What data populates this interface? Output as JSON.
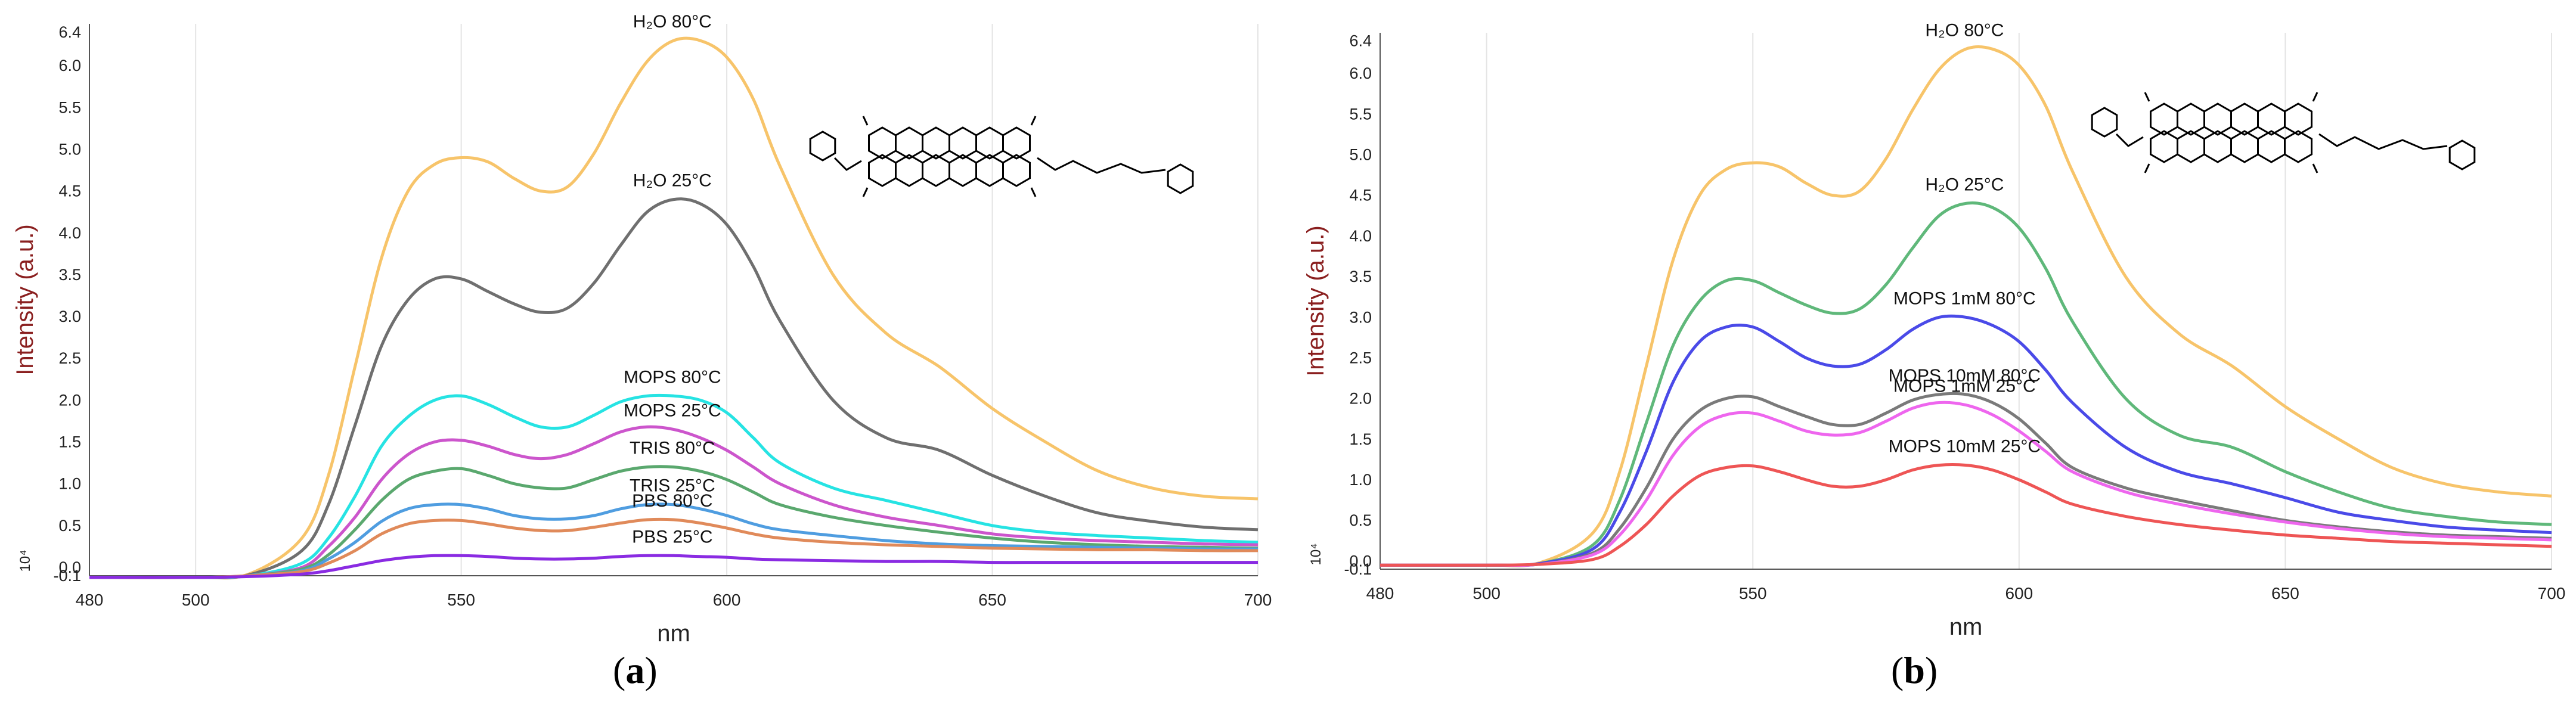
{
  "panels": [
    {
      "caption_open": "(",
      "caption_letter": "a",
      "caption_close": ")",
      "chart_data": {
        "type": "line",
        "xlabel": "nm",
        "ylabel": "Intensity (a.u.)",
        "y_multiplier": "10⁴",
        "xlim": [
          480,
          700
        ],
        "ylim": [
          -0.1,
          6.5
        ],
        "x_ticks": [
          "480",
          "500",
          "550",
          "600",
          "650",
          "700"
        ],
        "y_ticks": [
          "-0.1",
          "0.0",
          "0.5",
          "1.0",
          "1.5",
          "2.0",
          "2.5",
          "3.0",
          "3.5",
          "4.0",
          "4.5",
          "5.0",
          "5.5",
          "6.0",
          "6.4"
        ],
        "x": [
          480,
          500,
          510,
          520,
          525,
          530,
          535,
          540,
          545,
          550,
          555,
          560,
          565,
          570,
          575,
          580,
          585,
          590,
          595,
          600,
          605,
          610,
          620,
          630,
          640,
          650,
          660,
          670,
          680,
          690,
          700
        ],
        "series": [
          {
            "label": "H₂O 80°C",
            "color": "#f7c46a",
            "values": [
              -0.12,
              -0.12,
              -0.08,
              0.35,
              1.1,
              2.4,
              3.7,
              4.5,
              4.82,
              4.9,
              4.85,
              4.65,
              4.5,
              4.55,
              4.95,
              5.55,
              6.05,
              6.3,
              6.3,
              6.1,
              5.6,
              4.8,
              3.5,
              2.8,
              2.4,
              1.9,
              1.5,
              1.15,
              0.95,
              0.85,
              0.82
            ]
          },
          {
            "label": "H₂O 25°C",
            "color": "#6f6f6f",
            "values": [
              -0.12,
              -0.12,
              -0.09,
              0.2,
              0.75,
              1.7,
              2.65,
              3.2,
              3.45,
              3.45,
              3.3,
              3.15,
              3.05,
              3.1,
              3.4,
              3.85,
              4.25,
              4.4,
              4.35,
              4.1,
              3.6,
              2.95,
              2.0,
              1.55,
              1.4,
              1.1,
              0.85,
              0.65,
              0.55,
              0.48,
              0.45
            ]
          },
          {
            "label": "MOPS 80°C",
            "color": "#26e3e3",
            "values": [
              -0.12,
              -0.12,
              -0.1,
              0.05,
              0.35,
              0.85,
              1.45,
              1.8,
              2.0,
              2.05,
              1.95,
              1.8,
              1.68,
              1.68,
              1.82,
              1.98,
              2.05,
              2.05,
              2.0,
              1.85,
              1.55,
              1.25,
              0.95,
              0.8,
              0.65,
              0.5,
              0.42,
              0.38,
              0.35,
              0.32,
              0.3
            ]
          },
          {
            "label": "MOPS 25°C",
            "color": "#cc55cc",
            "values": [
              -0.12,
              -0.12,
              -0.1,
              0.0,
              0.25,
              0.6,
              1.05,
              1.35,
              1.5,
              1.52,
              1.45,
              1.35,
              1.3,
              1.35,
              1.48,
              1.62,
              1.68,
              1.65,
              1.55,
              1.4,
              1.2,
              1.0,
              0.75,
              0.6,
              0.5,
              0.4,
              0.35,
              0.32,
              0.3,
              0.28,
              0.27
            ]
          },
          {
            "label": "TRIS 80°C",
            "color": "#5aa86e",
            "values": [
              -0.12,
              -0.12,
              -0.1,
              -0.02,
              0.15,
              0.45,
              0.8,
              1.05,
              1.15,
              1.18,
              1.1,
              1.0,
              0.95,
              0.95,
              1.05,
              1.15,
              1.2,
              1.2,
              1.15,
              1.05,
              0.9,
              0.75,
              0.6,
              0.5,
              0.42,
              0.35,
              0.3,
              0.27,
              0.25,
              0.24,
              0.23
            ]
          },
          {
            "label": "TRIS 25°C",
            "color": "#4f9de0",
            "values": [
              -0.12,
              -0.12,
              -0.1,
              -0.04,
              0.1,
              0.3,
              0.55,
              0.7,
              0.75,
              0.75,
              0.7,
              0.62,
              0.58,
              0.58,
              0.62,
              0.7,
              0.75,
              0.75,
              0.7,
              0.62,
              0.52,
              0.45,
              0.38,
              0.32,
              0.28,
              0.26,
              0.25,
              0.24,
              0.23,
              0.22,
              0.22
            ]
          },
          {
            "label": "PBS 80°C",
            "color": "#e08a5a",
            "values": [
              -0.12,
              -0.12,
              -0.1,
              -0.05,
              0.05,
              0.2,
              0.4,
              0.52,
              0.56,
              0.56,
              0.52,
              0.47,
              0.44,
              0.44,
              0.48,
              0.53,
              0.57,
              0.57,
              0.53,
              0.47,
              0.4,
              0.35,
              0.3,
              0.27,
              0.25,
              0.23,
              0.22,
              0.21,
              0.21,
              0.2,
              0.2
            ]
          },
          {
            "label": "PBS 25°C",
            "color": "#8a2be2",
            "values": [
              -0.12,
              -0.12,
              -0.11,
              -0.08,
              -0.04,
              0.02,
              0.08,
              0.12,
              0.14,
              0.14,
              0.13,
              0.11,
              0.1,
              0.1,
              0.11,
              0.13,
              0.14,
              0.14,
              0.13,
              0.12,
              0.1,
              0.09,
              0.08,
              0.07,
              0.07,
              0.06,
              0.06,
              0.06,
              0.06,
              0.06,
              0.06
            ]
          }
        ]
      }
    },
    {
      "caption_open": "(",
      "caption_letter": "b",
      "caption_close": ")",
      "chart_data": {
        "type": "line",
        "xlabel": "nm",
        "ylabel": "Intensity (a.u.)",
        "y_multiplier": "10⁴",
        "xlim": [
          480,
          700
        ],
        "ylim": [
          -0.1,
          6.5
        ],
        "x_ticks": [
          "480",
          "500",
          "550",
          "600",
          "650",
          "700"
        ],
        "y_ticks": [
          "-0.1",
          "0.0",
          "0.5",
          "1.0",
          "1.5",
          "2.0",
          "2.5",
          "3.0",
          "3.5",
          "4.0",
          "4.5",
          "5.0",
          "5.5",
          "6.0",
          "6.4"
        ],
        "x": [
          480,
          500,
          510,
          520,
          525,
          530,
          535,
          540,
          545,
          550,
          555,
          560,
          565,
          570,
          575,
          580,
          585,
          590,
          595,
          600,
          605,
          610,
          620,
          630,
          640,
          650,
          660,
          670,
          680,
          690,
          700
        ],
        "series": [
          {
            "label": "H₂O 80°C",
            "color": "#f7c46a",
            "values": [
              -0.05,
              -0.05,
              -0.02,
              0.35,
              1.1,
              2.4,
              3.7,
              4.5,
              4.82,
              4.9,
              4.85,
              4.65,
              4.5,
              4.55,
              4.95,
              5.55,
              6.05,
              6.3,
              6.3,
              6.1,
              5.6,
              4.8,
              3.5,
              2.8,
              2.4,
              1.9,
              1.5,
              1.15,
              0.95,
              0.85,
              0.8
            ]
          },
          {
            "label": "H₂O 25°C",
            "color": "#5fb87a",
            "values": [
              -0.05,
              -0.05,
              -0.03,
              0.2,
              0.75,
              1.7,
              2.65,
              3.2,
              3.45,
              3.45,
              3.3,
              3.15,
              3.05,
              3.1,
              3.4,
              3.85,
              4.25,
              4.4,
              4.35,
              4.1,
              3.6,
              2.95,
              2.0,
              1.55,
              1.4,
              1.1,
              0.85,
              0.65,
              0.55,
              0.48,
              0.45
            ]
          },
          {
            "label": "MOPS 1mM 80°C",
            "color": "#4a4ae8",
            "values": [
              -0.05,
              -0.05,
              -0.03,
              0.15,
              0.6,
              1.35,
              2.2,
              2.7,
              2.88,
              2.88,
              2.7,
              2.5,
              2.4,
              2.42,
              2.6,
              2.85,
              3.0,
              3.0,
              2.9,
              2.7,
              2.35,
              1.95,
              1.4,
              1.1,
              0.95,
              0.78,
              0.6,
              0.5,
              0.42,
              0.38,
              0.35
            ]
          },
          {
            "label": "MOPS 10mM 80°C",
            "color": "#7a7a7a",
            "values": [
              -0.05,
              -0.05,
              -0.04,
              0.1,
              0.4,
              0.9,
              1.5,
              1.85,
              2.0,
              2.02,
              1.9,
              1.78,
              1.68,
              1.68,
              1.82,
              1.98,
              2.05,
              2.05,
              1.95,
              1.75,
              1.45,
              1.15,
              0.9,
              0.75,
              0.62,
              0.5,
              0.42,
              0.36,
              0.32,
              0.3,
              0.28
            ]
          },
          {
            "label": "MOPS 1mM 25°C",
            "color": "#ee66ee",
            "values": [
              -0.05,
              -0.05,
              -0.04,
              0.08,
              0.32,
              0.75,
              1.3,
              1.65,
              1.8,
              1.82,
              1.72,
              1.6,
              1.55,
              1.58,
              1.72,
              1.88,
              1.95,
              1.92,
              1.8,
              1.6,
              1.35,
              1.1,
              0.85,
              0.7,
              0.58,
              0.48,
              0.4,
              0.34,
              0.3,
              0.28,
              0.26
            ]
          },
          {
            "label": "MOPS 10mM 25°C",
            "color": "#ee5555",
            "values": [
              -0.05,
              -0.05,
              -0.04,
              0.02,
              0.18,
              0.45,
              0.8,
              1.05,
              1.15,
              1.17,
              1.1,
              1.0,
              0.92,
              0.92,
              1.0,
              1.12,
              1.18,
              1.18,
              1.12,
              1.0,
              0.85,
              0.7,
              0.55,
              0.45,
              0.38,
              0.32,
              0.28,
              0.24,
              0.22,
              0.2,
              0.18
            ]
          }
        ]
      }
    }
  ]
}
